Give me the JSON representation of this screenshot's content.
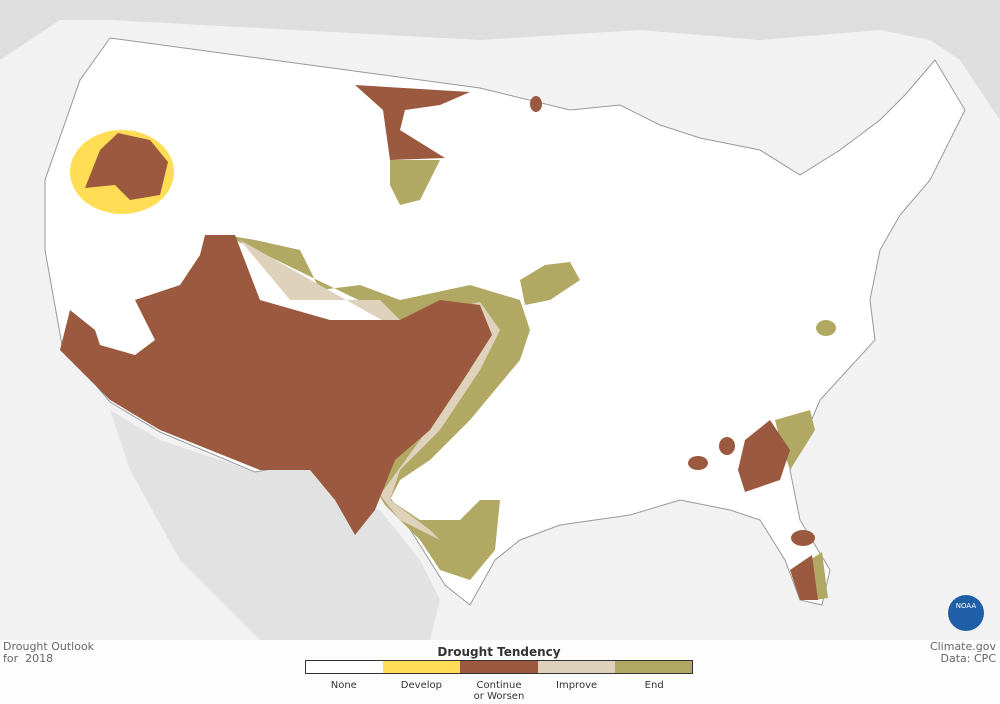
{
  "header": {
    "title": "Drought Outlook",
    "period": "for  2018"
  },
  "legend": {
    "title": "Drought Tendency",
    "items": [
      {
        "label": "None",
        "color": "#ffffff"
      },
      {
        "label": "Develop",
        "color": "#ffdd55"
      },
      {
        "label": "Continue or Worsen",
        "color": "#9b5a3f"
      },
      {
        "label": "Improve",
        "color": "#ded2bd"
      },
      {
        "label": "End",
        "color": "#b1a963"
      }
    ]
  },
  "credits": {
    "site": "Climate.gov",
    "source": "Data: CPC",
    "logo": "NOAA"
  }
}
